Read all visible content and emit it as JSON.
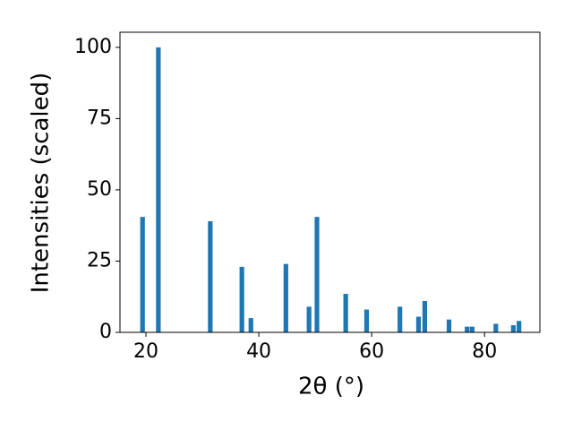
{
  "chart_data": {
    "type": "bar",
    "xlabel": "2θ (°)",
    "ylabel": "Intensities (scaled)",
    "x": [
      19.4,
      22.2,
      31.4,
      37.0,
      38.6,
      44.8,
      48.9,
      50.3,
      55.4,
      59.1,
      65.0,
      68.3,
      69.4,
      73.7,
      76.9,
      77.8,
      82.0,
      85.1,
      86.1
    ],
    "values": [
      40.5,
      100,
      39,
      23,
      5,
      24,
      9,
      40.5,
      13.5,
      8,
      9,
      5.5,
      11,
      4.5,
      2,
      2,
      3,
      2.5,
      4
    ],
    "color": "#1f77b4",
    "xlim": [
      15.4,
      89.8
    ],
    "xticks": [
      20,
      40,
      60,
      80
    ],
    "ylim": [
      0,
      105.3
    ],
    "yticks": [
      0,
      25,
      50,
      75,
      100
    ],
    "grid": false
  }
}
